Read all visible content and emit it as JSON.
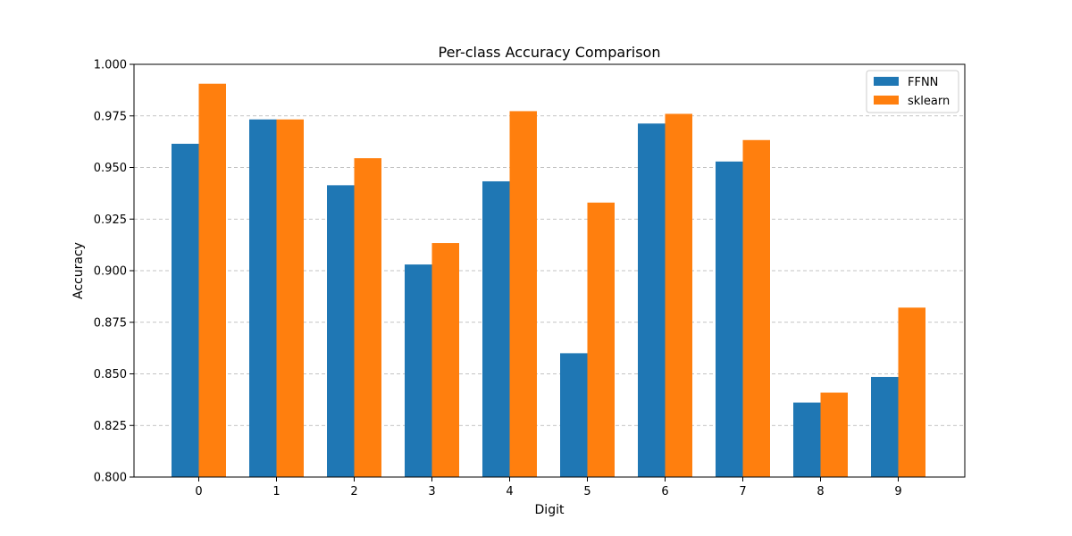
{
  "chart_data": {
    "type": "bar",
    "title": "Per-class Accuracy Comparison",
    "xlabel": "Digit",
    "ylabel": "Accuracy",
    "categories": [
      "0",
      "1",
      "2",
      "3",
      "4",
      "5",
      "6",
      "7",
      "8",
      "9"
    ],
    "series": [
      {
        "name": "FFNN",
        "color": "#1f77b4",
        "values": [
          0.9615,
          0.9733,
          0.9414,
          0.903,
          0.9433,
          0.86,
          0.9713,
          0.9529,
          0.8361,
          0.8485
        ]
      },
      {
        "name": "sklearn",
        "color": "#ff7f0e",
        "values": [
          0.9906,
          0.9733,
          0.9545,
          0.9134,
          0.9773,
          0.933,
          0.976,
          0.9633,
          0.8409,
          0.8821
        ]
      }
    ],
    "ylim": [
      0.8,
      1.0
    ],
    "yticks": [
      "0.800",
      "0.825",
      "0.850",
      "0.875",
      "0.900",
      "0.925",
      "0.950",
      "0.975",
      "1.000"
    ],
    "grid": "y-dashed",
    "legend": "top-right"
  }
}
